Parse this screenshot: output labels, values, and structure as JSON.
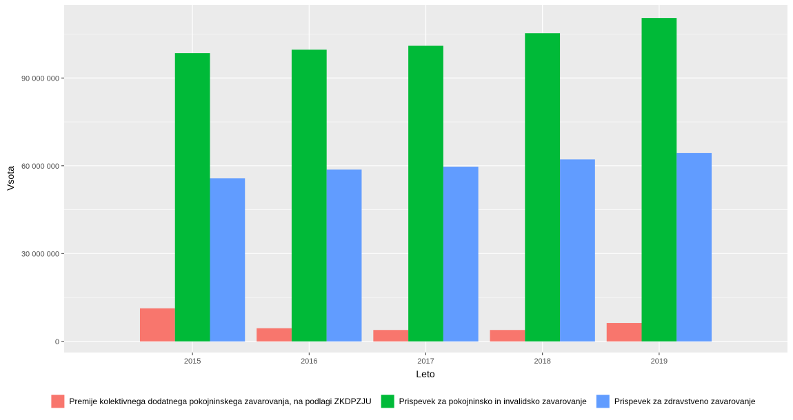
{
  "chart_data": {
    "type": "bar",
    "xlabel": "Leto",
    "ylabel": "Vsota",
    "categories": [
      "2015",
      "2016",
      "2017",
      "2018",
      "2019"
    ],
    "ylim": [
      -3800000,
      115000000
    ],
    "yticks": [
      0,
      30000000,
      60000000,
      90000000
    ],
    "ytick_labels": [
      "0",
      "30 000 000",
      "60 000 000",
      "90 000 000"
    ],
    "grid": true,
    "legend_position": "bottom",
    "series": [
      {
        "name": "Premije kolektivnega dodatnega pokojninskega zavarovanja, na podlagi ZKDPZJU",
        "color": "#F8766D",
        "values": [
          11300000,
          4500000,
          3900000,
          3900000,
          6300000
        ]
      },
      {
        "name": "Prispevek za pokojninsko in invalidsko zavarovanje",
        "color": "#00BA38",
        "values": [
          98500000,
          99700000,
          101000000,
          105300000,
          110500000
        ]
      },
      {
        "name": "Prispevek za zdravstveno zavarovanje",
        "color": "#619CFF",
        "values": [
          55700000,
          58700000,
          59700000,
          62200000,
          64400000
        ]
      }
    ]
  }
}
